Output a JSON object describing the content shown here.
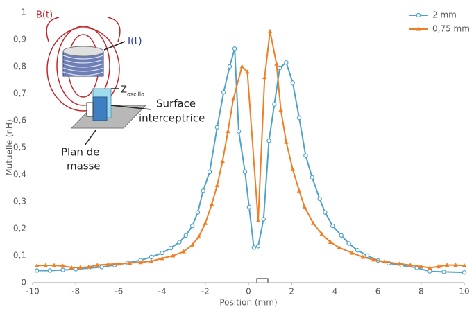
{
  "chart_data": {
    "type": "line",
    "xlabel": "Position (mm)",
    "ylabel": "Mutuelle (nH)",
    "xlim": [
      -10,
      10
    ],
    "xticks": [
      -10,
      -8,
      -6,
      -4,
      -2,
      0,
      2,
      4,
      6,
      8,
      10
    ],
    "ylim": [
      0,
      1
    ],
    "yticks": [
      0,
      {
        "value": 0.1,
        "label": "0,1"
      },
      {
        "value": 0.2,
        "label": "0,2"
      },
      {
        "value": 0.3,
        "label": "0,3"
      },
      {
        "value": 0.4,
        "label": "0,4"
      },
      {
        "value": 0.5,
        "label": "0,5"
      },
      {
        "value": 0.6,
        "label": "0,6"
      },
      {
        "value": 0.7,
        "label": "0,7"
      },
      {
        "value": 0.8,
        "label": "0,8"
      },
      {
        "value": 0.9,
        "label": "0,9"
      },
      1
    ],
    "grid": false,
    "legend": "upper right",
    "series": [
      {
        "name": "2 mm",
        "color": "#4fa3c8",
        "marker": "circle",
        "x": [
          -9.8,
          -9.2,
          -8.6,
          -8,
          -7.4,
          -6.8,
          -6.2,
          -5.6,
          -5,
          -4.5,
          -4,
          -3.6,
          -3.2,
          -2.9,
          -2.6,
          -2.35,
          -2.1,
          -1.8,
          -1.45,
          -1.15,
          -0.87,
          -0.64,
          -0.45,
          -0.16,
          0.03,
          0.25,
          0.45,
          0.7,
          0.95,
          1.2,
          1.45,
          1.75,
          2.05,
          2.35,
          2.65,
          2.95,
          3.3,
          3.55,
          3.9,
          4.3,
          4.65,
          5.05,
          5.5,
          6,
          6.5,
          7.1,
          7.8,
          8.4,
          9.05,
          10
        ],
        "values": [
          0.045,
          0.045,
          0.047,
          0.05,
          0.054,
          0.058,
          0.065,
          0.073,
          0.083,
          0.095,
          0.11,
          0.128,
          0.15,
          0.175,
          0.21,
          0.26,
          0.34,
          0.41,
          0.575,
          0.705,
          0.8,
          0.866,
          0.56,
          0.41,
          0.28,
          0.13,
          0.135,
          0.235,
          0.525,
          0.66,
          0.795,
          0.815,
          0.74,
          0.61,
          0.47,
          0.39,
          0.31,
          0.26,
          0.21,
          0.175,
          0.145,
          0.12,
          0.1,
          0.082,
          0.072,
          0.064,
          0.055,
          0.042,
          0.04,
          0.038
        ]
      },
      {
        "name": "0,75 mm",
        "color": "#ee7f26",
        "marker": "triangle",
        "x": [
          -9.8,
          -9.4,
          -9,
          -8.6,
          -8.2,
          -7.8,
          -7.4,
          -7,
          -6.5,
          -6,
          -5.5,
          -5,
          -4.5,
          -4,
          -3.5,
          -3,
          -2.6,
          -2.3,
          -2,
          -1.7,
          -1.45,
          -1.2,
          -0.95,
          -0.7,
          -0.3,
          -0.05,
          0.45,
          0.75,
          1,
          1.3,
          1.5,
          1.75,
          2.05,
          2.35,
          2.6,
          3,
          3.4,
          3.8,
          4.2,
          4.8,
          5.3,
          5.8,
          6.3,
          7,
          7.5,
          8,
          8.4,
          8.8,
          9.2,
          9.6,
          10
        ],
        "values": [
          0.063,
          0.064,
          0.064,
          0.062,
          0.056,
          0.056,
          0.058,
          0.065,
          0.068,
          0.07,
          0.073,
          0.075,
          0.08,
          0.09,
          0.1,
          0.115,
          0.14,
          0.17,
          0.22,
          0.29,
          0.36,
          0.45,
          0.56,
          0.68,
          0.8,
          0.78,
          0.23,
          0.76,
          0.93,
          0.81,
          0.64,
          0.52,
          0.42,
          0.34,
          0.28,
          0.22,
          0.18,
          0.15,
          0.13,
          0.11,
          0.095,
          0.085,
          0.078,
          0.07,
          0.065,
          0.06,
          0.055,
          0.06,
          0.065,
          0.065,
          0.063
        ]
      }
    ]
  },
  "inset": {
    "b_label": "B(t)",
    "i_label": "I(t)",
    "z_label": "Z",
    "z_sub": "oscillo",
    "surface_label": [
      "Surface",
      "interceptrice"
    ],
    "plane_label": [
      "Plan de",
      "masse"
    ]
  }
}
